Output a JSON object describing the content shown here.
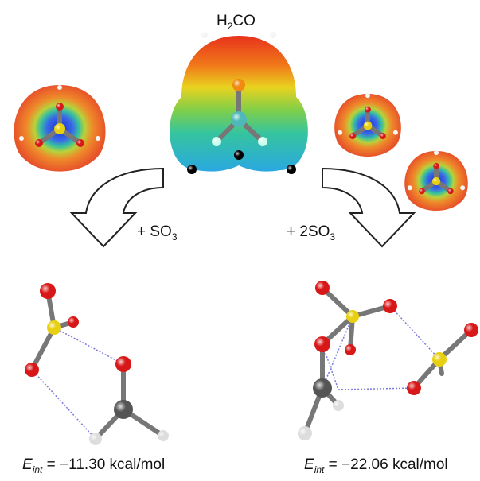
{
  "top_molecule": {
    "label": {
      "main": "H",
      "sub": "2",
      "rest": "CO"
    }
  },
  "arrows": [
    {
      "label": {
        "main": "+ SO",
        "sub": "3"
      }
    },
    {
      "label": {
        "main": "+ 2SO",
        "sub": "3"
      }
    }
  ],
  "results": [
    {
      "energy": {
        "symbol": "E",
        "sub": "int",
        "value": " = −11.30 kcal/mol"
      }
    },
    {
      "energy": {
        "symbol": "E",
        "sub": "int",
        "value": " = −22.06 kcal/mol"
      }
    }
  ]
}
